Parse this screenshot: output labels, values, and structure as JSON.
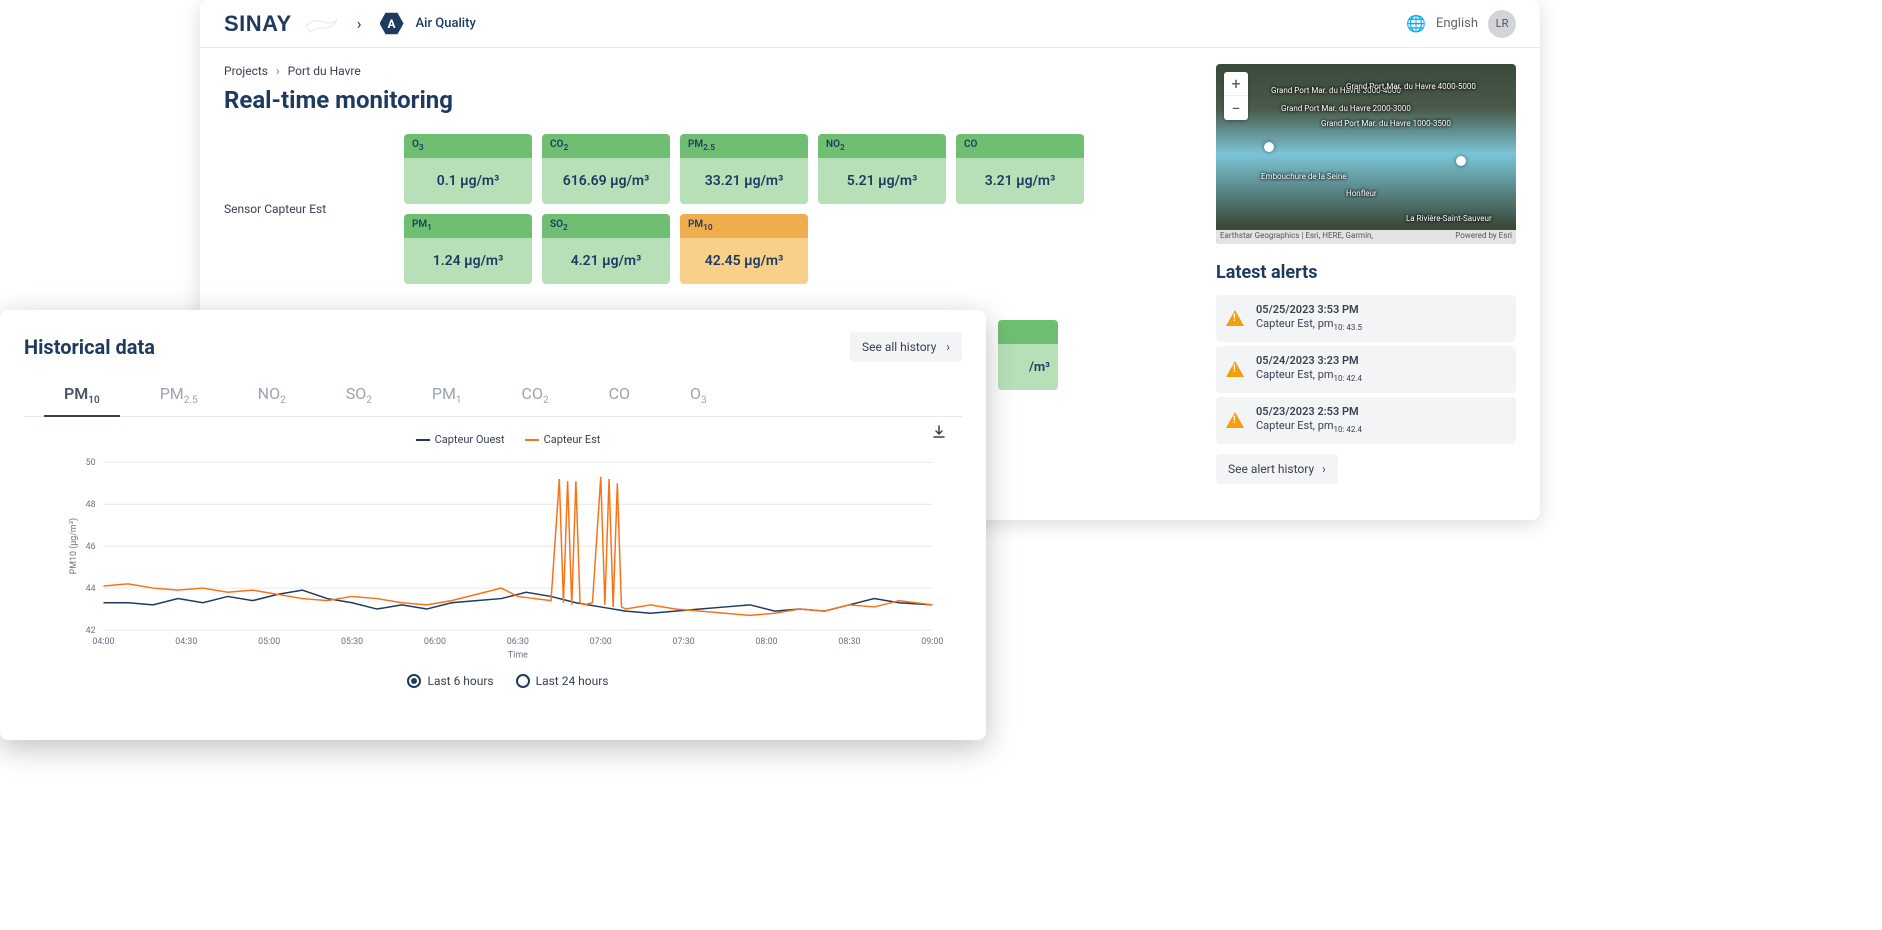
{
  "header": {
    "logo_text": "SINAY",
    "badge": "A",
    "section": "Air Quality",
    "language": "English",
    "avatar_initials": "LR"
  },
  "breadcrumb": {
    "root": "Projects",
    "current": "Port du Havre"
  },
  "page_title": "Real-time monitoring",
  "sensor_label": "Sensor Capteur Est",
  "unit": "µg/m³",
  "metrics": [
    {
      "label": "O₃",
      "label_html": "O<sub>3</sub>",
      "value": "0.1 µg/m³",
      "status": "green"
    },
    {
      "label": "CO₂",
      "label_html": "CO<sub>2</sub>",
      "value": "616.69 µg/m³",
      "status": "green"
    },
    {
      "label": "PM₂.₅",
      "label_html": "PM<sub>2.5</sub>",
      "value": "33.21 µg/m³",
      "status": "green"
    },
    {
      "label": "NO₂",
      "label_html": "NO<sub>2</sub>",
      "value": "5.21 µg/m³",
      "status": "green"
    },
    {
      "label": "CO",
      "label_html": "CO",
      "value": "3.21 µg/m³",
      "status": "green"
    },
    {
      "label": "PM₁",
      "label_html": "PM<sub>1</sub>",
      "value": "1.24 µg/m³",
      "status": "green"
    },
    {
      "label": "SO₂",
      "label_html": "SO<sub>2</sub>",
      "value": "4.21 µg/m³",
      "status": "green"
    },
    {
      "label": "PM₁₀",
      "label_html": "PM<sub>10</sub>",
      "value": "42.45 µg/m³",
      "status": "orange"
    }
  ],
  "partial_metric_suffix": "/m³",
  "map": {
    "attrib_left": "Earthstar Geographics | Esri, HERE, Garmin,",
    "attrib_right": "Powered by Esri",
    "labels": [
      "Grand Port Mar. du Havre 3000-4000",
      "Grand Port Mar. du Havre 4000-5000",
      "Grand Port Mar. du Havre 2000-3000",
      "Grand Port Mar. du Havre 1000-3500",
      "Embouchure de la Seine",
      "Honfleur",
      "La Rivière-Saint-Sauveur"
    ]
  },
  "alerts": {
    "title": "Latest alerts",
    "items": [
      {
        "time": "05/25/2023 3:53 PM",
        "sensor": "Capteur Est, pm",
        "sub": "10: 43.5"
      },
      {
        "time": "05/24/2023 3:23 PM",
        "sensor": "Capteur Est, pm",
        "sub": "10: 42.4"
      },
      {
        "time": "05/23/2023 2:53 PM",
        "sensor": "Capteur Est, pm",
        "sub": "10: 42.4"
      }
    ],
    "see_history": "See alert history"
  },
  "historical": {
    "title": "Historical data",
    "see_all": "See all history",
    "tabs": [
      {
        "html": "PM<sub>10</sub>",
        "active": true
      },
      {
        "html": "PM<sub>2.5</sub>",
        "active": false
      },
      {
        "html": "NO<sub>2</sub>",
        "active": false
      },
      {
        "html": "SO<sub>2</sub>",
        "active": false
      },
      {
        "html": "PM<sub>1</sub>",
        "active": false
      },
      {
        "html": "CO<sub>2</sub>",
        "active": false
      },
      {
        "html": "CO",
        "active": false
      },
      {
        "html": "O<sub>3</sub>",
        "active": false
      }
    ],
    "legend": [
      {
        "label": "Capteur Ouest",
        "color": "#1e3a5f"
      },
      {
        "label": "Capteur Est",
        "color": "#f97316"
      }
    ],
    "radios": [
      {
        "label": "Last 6 hours",
        "checked": true
      },
      {
        "label": "Last 24 hours",
        "checked": false
      }
    ],
    "chart": {
      "type": "line",
      "xlabel": "Time",
      "ylabel": "PM10 (μg/m³)",
      "ylim": [
        42,
        50
      ],
      "yticks": [
        42,
        44,
        46,
        48,
        50
      ],
      "xticks": [
        "04:00",
        "04:30",
        "05:00",
        "05:30",
        "06:00",
        "06:30",
        "07:00",
        "07:30",
        "08:00",
        "08:30",
        "09:00"
      ],
      "grid_color": "#e5e7eb",
      "background_color": "#ffffff",
      "line_width": 1.5,
      "series": {
        "ouest": {
          "color": "#1e3a5f",
          "xy": [
            [
              0,
              43.3
            ],
            [
              3,
              43.3
            ],
            [
              6,
              43.2
            ],
            [
              9,
              43.5
            ],
            [
              12,
              43.3
            ],
            [
              15,
              43.6
            ],
            [
              18,
              43.4
            ],
            [
              21,
              43.7
            ],
            [
              24,
              43.9
            ],
            [
              27,
              43.5
            ],
            [
              30,
              43.3
            ],
            [
              33,
              43.0
            ],
            [
              36,
              43.2
            ],
            [
              39,
              43.0
            ],
            [
              42,
              43.3
            ],
            [
              45,
              43.4
            ],
            [
              48,
              43.5
            ],
            [
              51,
              43.8
            ],
            [
              54,
              43.6
            ],
            [
              57,
              43.3
            ],
            [
              60,
              43.1
            ],
            [
              63,
              42.9
            ],
            [
              66,
              42.8
            ],
            [
              69,
              42.9
            ],
            [
              72,
              43.0
            ],
            [
              75,
              43.1
            ],
            [
              78,
              43.2
            ],
            [
              81,
              42.9
            ],
            [
              84,
              43.0
            ],
            [
              87,
              42.9
            ],
            [
              90,
              43.2
            ],
            [
              93,
              43.5
            ],
            [
              96,
              43.3
            ],
            [
              100,
              43.2
            ]
          ]
        },
        "est": {
          "color": "#f97316",
          "xy": [
            [
              0,
              44.1
            ],
            [
              3,
              44.2
            ],
            [
              6,
              44.0
            ],
            [
              9,
              43.9
            ],
            [
              12,
              44.0
            ],
            [
              15,
              43.8
            ],
            [
              18,
              43.9
            ],
            [
              21,
              43.7
            ],
            [
              24,
              43.5
            ],
            [
              27,
              43.4
            ],
            [
              30,
              43.6
            ],
            [
              33,
              43.5
            ],
            [
              36,
              43.3
            ],
            [
              39,
              43.2
            ],
            [
              42,
              43.4
            ],
            [
              45,
              43.7
            ],
            [
              48,
              44.0
            ],
            [
              50,
              43.6
            ],
            [
              52,
              43.5
            ],
            [
              54,
              43.4
            ],
            [
              55,
              49.2
            ],
            [
              55.5,
              43.3
            ],
            [
              56,
              49.1
            ],
            [
              56.5,
              43.2
            ],
            [
              57,
              49.1
            ],
            [
              57.5,
              43.3
            ],
            [
              58,
              43.2
            ],
            [
              59,
              43.3
            ],
            [
              60,
              49.3
            ],
            [
              60.5,
              43.2
            ],
            [
              61,
              49.2
            ],
            [
              61.5,
              43.1
            ],
            [
              62,
              49.0
            ],
            [
              62.5,
              43.1
            ],
            [
              63,
              43.0
            ],
            [
              66,
              43.2
            ],
            [
              69,
              43.0
            ],
            [
              72,
              42.9
            ],
            [
              75,
              42.8
            ],
            [
              78,
              42.7
            ],
            [
              81,
              42.8
            ],
            [
              84,
              43.0
            ],
            [
              87,
              42.9
            ],
            [
              90,
              43.2
            ],
            [
              93,
              43.1
            ],
            [
              96,
              43.4
            ],
            [
              100,
              43.2
            ]
          ]
        }
      }
    }
  },
  "colors": {
    "brand": "#1e3a5f",
    "green_dark": "#6fbf73",
    "green_light": "#b7e0b9",
    "orange_dark": "#f0ad4e",
    "orange_light": "#f7d08a",
    "alert_icon": "#f59e0b"
  }
}
